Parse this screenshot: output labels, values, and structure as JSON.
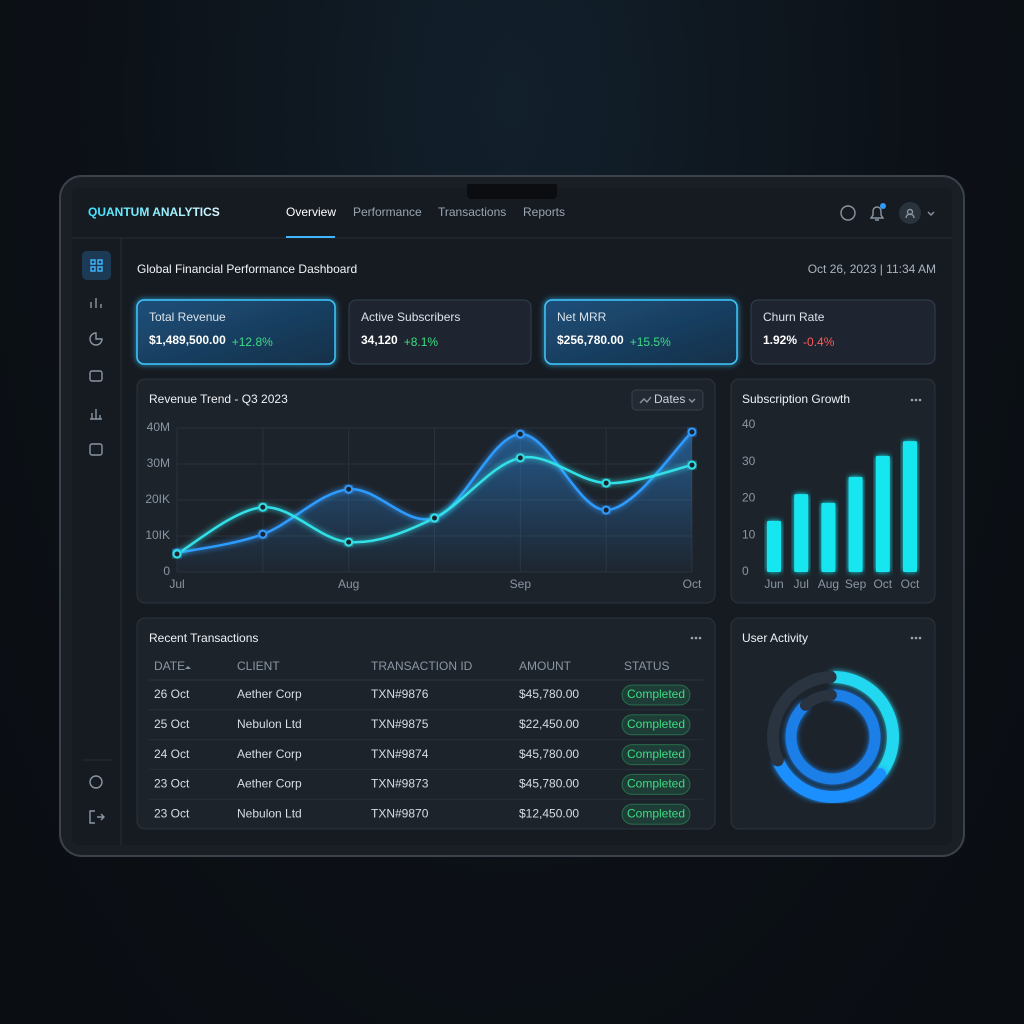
{
  "header": {
    "brand": "QUANTUM ANALYTICS",
    "nav": [
      "Overview",
      "Performance",
      "Transactions",
      "Reports"
    ]
  },
  "page": {
    "title": "Global Financial Performance Dashboard",
    "timestamp": "Oct 26, 2023 | 11:34 AM"
  },
  "kpis": [
    {
      "label": "Total Revenue",
      "value": "$1,489,500.00",
      "change": "+12.8%",
      "change_color": "#3ddc84",
      "highlight": true
    },
    {
      "label": "Active Subscribers",
      "value": "34,120",
      "change": "+8.1%",
      "change_color": "#3ddc84",
      "highlight": false
    },
    {
      "label": "Net MRR",
      "value": "$256,780.00",
      "change": "+15.5%",
      "change_color": "#3ddc84",
      "highlight": true
    },
    {
      "label": "Churn Rate",
      "value": "1.92%",
      "change": "-0.4%",
      "change_color": "#ff5a5a",
      "highlight": false
    }
  ],
  "chart_data": [
    {
      "type": "line",
      "title": "Revenue Trend - Q3 2023",
      "button": "Dates",
      "categories": [
        "Jul",
        null,
        "Aug",
        null,
        "Sep",
        null,
        "Oct"
      ],
      "series": [
        {
          "color": "#2f9bff",
          "values": [
            5.3,
            10.5,
            23,
            15,
            38.3,
            17.2,
            38.9
          ],
          "area": true
        },
        {
          "color": "#33e0e8",
          "values": [
            5,
            18,
            8.3,
            15,
            31.7,
            24.7,
            29.7
          ],
          "area": false
        }
      ],
      "ylim": [
        0,
        40
      ],
      "yticks": [
        0,
        {
          "value": 10,
          "label": "10IK"
        },
        {
          "value": 20,
          "label": "20IK"
        },
        {
          "value": 30,
          "label": "30M"
        },
        {
          "value": 40,
          "label": "40M"
        }
      ],
      "grid": true
    },
    {
      "type": "bar",
      "title": "Subscription Growth",
      "categories": [
        "Jun",
        "Jul",
        "Aug",
        "Sep",
        "Oct",
        "Oct"
      ],
      "values": [
        13.9,
        21.2,
        18.8,
        25.9,
        31.6,
        35.6
      ],
      "color": "#19e6f0",
      "ylim": [
        0,
        40
      ],
      "yticks": [
        0,
        10,
        20,
        30,
        40
      ]
    },
    {
      "type": "donut",
      "title": "User Activity",
      "rings": [
        {
          "values": [
            35,
            33,
            32
          ],
          "colors": [
            "#22d8f0",
            "#1e8fff",
            "#2a3340"
          ]
        },
        {
          "values": [
            88,
            12
          ],
          "colors": [
            "#1a7fe8",
            "#2a3340"
          ]
        }
      ]
    }
  ],
  "table": {
    "title": "Recent Transactions",
    "columns": [
      "DATE",
      "CLIENT",
      "TRANSACTION ID",
      "AMOUNT",
      "STATUS"
    ],
    "rows": [
      [
        "26 Oct",
        "Aether Corp",
        "TXN#9876",
        "$45,780.00",
        "Completed"
      ],
      [
        "25 Oct",
        "Nebulon Ltd",
        "TXN#9875",
        "$22,450.00",
        "Completed"
      ],
      [
        "24 Oct",
        "Aether Corp",
        "TXN#9874",
        "$45,780.00",
        "Completed"
      ],
      [
        "23 Oct",
        "Aether Corp",
        "TXN#9873",
        "$45,780.00",
        "Completed"
      ],
      [
        "23 Oct",
        "Nebulon Ltd",
        "TXN#9870",
        "$12,450.00",
        "Completed"
      ]
    ]
  }
}
